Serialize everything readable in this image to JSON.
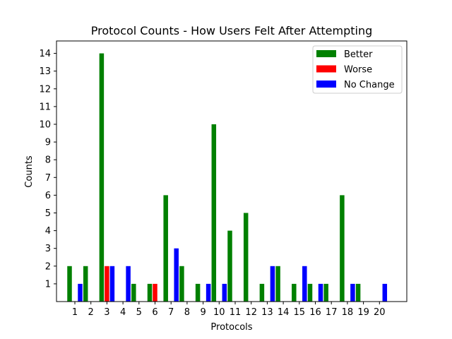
{
  "chart_data": {
    "type": "bar",
    "title": "Protocol Counts - How Users Felt After Attempting",
    "xlabel": "Protocols",
    "ylabel": "Counts",
    "categories": [
      "1",
      "2",
      "3",
      "4",
      "5",
      "6",
      "7",
      "8",
      "9",
      "10",
      "11",
      "12",
      "13",
      "14",
      "15",
      "16",
      "17",
      "18",
      "19",
      "20"
    ],
    "yticks": [
      "1",
      "2",
      "3",
      "4",
      "5",
      "6",
      "7",
      "8",
      "9",
      "10",
      "11",
      "12",
      "13",
      "14"
    ],
    "ylim": [
      0,
      14.7
    ],
    "legend_position": "top-right",
    "series": [
      {
        "name": "Better",
        "color": "#008000",
        "values": [
          2,
          2,
          14,
          0,
          1,
          1,
          6,
          2,
          1,
          10,
          4,
          5,
          1,
          2,
          1,
          1,
          1,
          6,
          1,
          0
        ]
      },
      {
        "name": "Worse",
        "color": "#ff0000",
        "values": [
          0,
          0,
          2,
          0,
          0,
          1,
          0,
          0,
          0,
          0,
          0,
          0,
          0,
          0,
          0,
          0,
          0,
          0,
          0,
          0
        ]
      },
      {
        "name": "No Change",
        "color": "#0000ff",
        "values": [
          1,
          0,
          2,
          2,
          0,
          0,
          3,
          0,
          1,
          1,
          0,
          0,
          2,
          0,
          2,
          1,
          0,
          1,
          0,
          1
        ]
      }
    ]
  }
}
